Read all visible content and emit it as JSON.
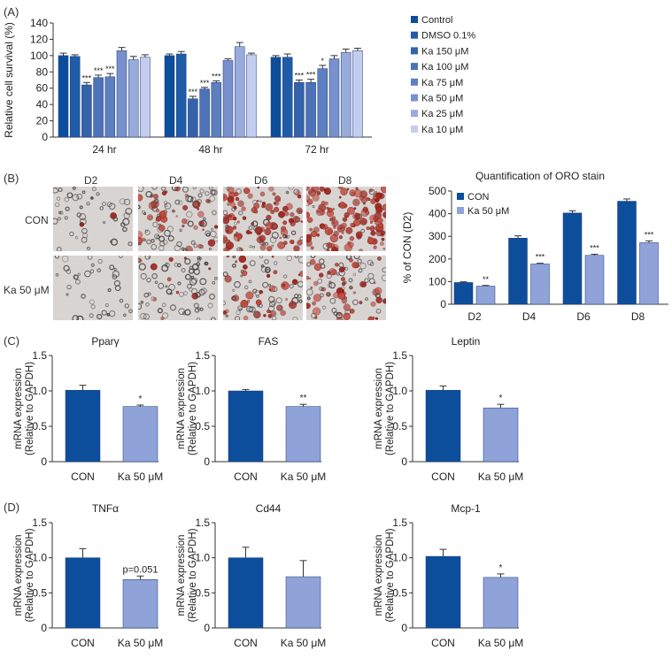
{
  "panels": {
    "A": "(A)",
    "B": "(B)",
    "C": "(C)",
    "D": "(D)"
  },
  "colors": {
    "con": "#0d4e9c",
    "ka": "#8fa3d8",
    "axis": "#333333",
    "sig": "#222222"
  },
  "micrograph": {
    "columns": [
      "D2",
      "D4",
      "D6",
      "D8"
    ],
    "rows": [
      "CON",
      "Ka 50 μM"
    ]
  },
  "chart_data": [
    {
      "id": "A",
      "type": "bar",
      "title": "",
      "xlabel": "",
      "ylabel": "Relative cell survival (%)",
      "ylim": [
        0,
        140
      ],
      "yticks": [
        "0",
        "20",
        "40",
        "60",
        "80",
        "100",
        "120",
        "140"
      ],
      "categories": [
        "24 hr",
        "48 hr",
        "72 hr"
      ],
      "series": [
        {
          "name": "Control",
          "color": "#0d4e9c",
          "values": [
            100,
            100,
            98
          ],
          "errors": [
            3,
            2,
            2
          ],
          "sig": [
            "",
            "",
            ""
          ]
        },
        {
          "name": "DMSO 0.1%",
          "color": "#1f5ca8",
          "values": [
            99,
            102,
            98
          ],
          "errors": [
            2,
            3,
            4
          ],
          "sig": [
            "",
            "",
            ""
          ]
        },
        {
          "name": "Ka 150 μM",
          "color": "#3562ab",
          "values": [
            64,
            47,
            67
          ],
          "errors": [
            3,
            3,
            3
          ],
          "sig": [
            "***",
            "***",
            "***"
          ]
        },
        {
          "name": "Ka 100 μM",
          "color": "#4d72b8",
          "values": [
            73,
            59,
            67
          ],
          "errors": [
            3,
            2,
            4
          ],
          "sig": [
            "***",
            "***",
            "***"
          ]
        },
        {
          "name": "Ka 75 μM",
          "color": "#5e7fbf",
          "values": [
            74,
            67,
            84
          ],
          "errors": [
            4,
            2,
            4
          ],
          "sig": [
            "***",
            "***",
            "*"
          ]
        },
        {
          "name": "Ka 50 μM",
          "color": "#7890cc",
          "values": [
            106,
            94,
            96
          ],
          "errors": [
            4,
            2,
            4
          ],
          "sig": [
            "",
            "",
            ""
          ]
        },
        {
          "name": "Ka 25 μM",
          "color": "#99abdb",
          "values": [
            95,
            111,
            104
          ],
          "errors": [
            4,
            5,
            4
          ],
          "sig": [
            "",
            "",
            ""
          ]
        },
        {
          "name": "Ka 10 μM",
          "color": "#c4cdee",
          "values": [
            98,
            101,
            106
          ],
          "errors": [
            3,
            2,
            3
          ],
          "sig": [
            "",
            "",
            ""
          ]
        }
      ]
    },
    {
      "id": "B",
      "type": "bar",
      "title": "Quantification of ORO stain",
      "xlabel": "",
      "ylabel": "% of CON (D2)",
      "ylim": [
        0,
        500
      ],
      "yticks": [
        "0",
        "100",
        "200",
        "300",
        "400",
        "500"
      ],
      "categories": [
        "D2",
        "D4",
        "D6",
        "D8"
      ],
      "series": [
        {
          "name": "CON",
          "color": "#0d4e9c",
          "values": [
            96,
            292,
            403,
            455
          ],
          "errors": [
            3,
            10,
            10,
            10
          ],
          "sig": [
            "",
            "",
            "",
            ""
          ]
        },
        {
          "name": "Ka 50 μM",
          "color": "#8fa3d8",
          "values": [
            80,
            178,
            216,
            272
          ],
          "errors": [
            3,
            3,
            5,
            8
          ],
          "sig": [
            "**",
            "***",
            "***",
            "***"
          ]
        }
      ]
    },
    {
      "id": "C1",
      "type": "bar",
      "title": "Pparγ",
      "ylabel": "mRNA expression (Relative to GAPDH)",
      "xlabel": "",
      "ylim": [
        0,
        1.5
      ],
      "yticks": [
        "0",
        "0.5",
        "1.0",
        "1.5"
      ],
      "categories": [
        "CON",
        "Ka 50 μM"
      ],
      "values": [
        1.01,
        0.78
      ],
      "errors": [
        0.07,
        0.02
      ],
      "sig": [
        "",
        "*"
      ]
    },
    {
      "id": "C2",
      "type": "bar",
      "title": "FAS",
      "ylabel": "mRNA expression (Relative to GAPDH)",
      "xlabel": "",
      "ylim": [
        0,
        1.5
      ],
      "yticks": [
        "0",
        "0.5",
        "1.0",
        "1.5"
      ],
      "categories": [
        "CON",
        "Ka 50 μM"
      ],
      "values": [
        1.0,
        0.78
      ],
      "errors": [
        0.02,
        0.03
      ],
      "sig": [
        "",
        "**"
      ]
    },
    {
      "id": "C3",
      "type": "bar",
      "title": "Leptin",
      "ylabel": "mRNA expression (Relative to GAPDH)",
      "xlabel": "",
      "ylim": [
        0,
        1.5
      ],
      "yticks": [
        "0",
        "0.5",
        "1.0",
        "1.5"
      ],
      "categories": [
        "CON",
        "Ka 50 μM"
      ],
      "values": [
        1.01,
        0.76
      ],
      "errors": [
        0.06,
        0.05
      ],
      "sig": [
        "",
        "*"
      ]
    },
    {
      "id": "D1",
      "type": "bar",
      "title": "TNFα",
      "ylabel": "mRNA expression (Relative to GAPDH)",
      "xlabel": "",
      "ylim": [
        0,
        1.5
      ],
      "yticks": [
        "0",
        "0.5",
        "1.0",
        "1.5"
      ],
      "categories": [
        "CON",
        "Ka 50 μM"
      ],
      "values": [
        1.0,
        0.69
      ],
      "errors": [
        0.13,
        0.05
      ],
      "sig": [
        "",
        "p=0.051"
      ]
    },
    {
      "id": "D2",
      "type": "bar",
      "title": "Cd44",
      "ylabel": "mRNA expression (Relative to GAPDH)",
      "xlabel": "",
      "ylim": [
        0,
        1.5
      ],
      "yticks": [
        "0",
        "0.5",
        "1.0",
        "1.5"
      ],
      "categories": [
        "CON",
        "Ka 50 μM"
      ],
      "values": [
        1.0,
        0.73
      ],
      "errors": [
        0.15,
        0.23
      ],
      "sig": [
        "",
        ""
      ]
    },
    {
      "id": "D3",
      "type": "bar",
      "title": "Mcp-1",
      "ylabel": "mRNA expression (Relative to GAPDH)",
      "xlabel": "",
      "ylim": [
        0,
        1.5
      ],
      "yticks": [
        "0",
        "0.5",
        "1.0",
        "1.5"
      ],
      "categories": [
        "CON",
        "Ka 50 μM"
      ],
      "values": [
        1.02,
        0.72
      ],
      "errors": [
        0.1,
        0.05
      ],
      "sig": [
        "",
        "*"
      ]
    }
  ]
}
